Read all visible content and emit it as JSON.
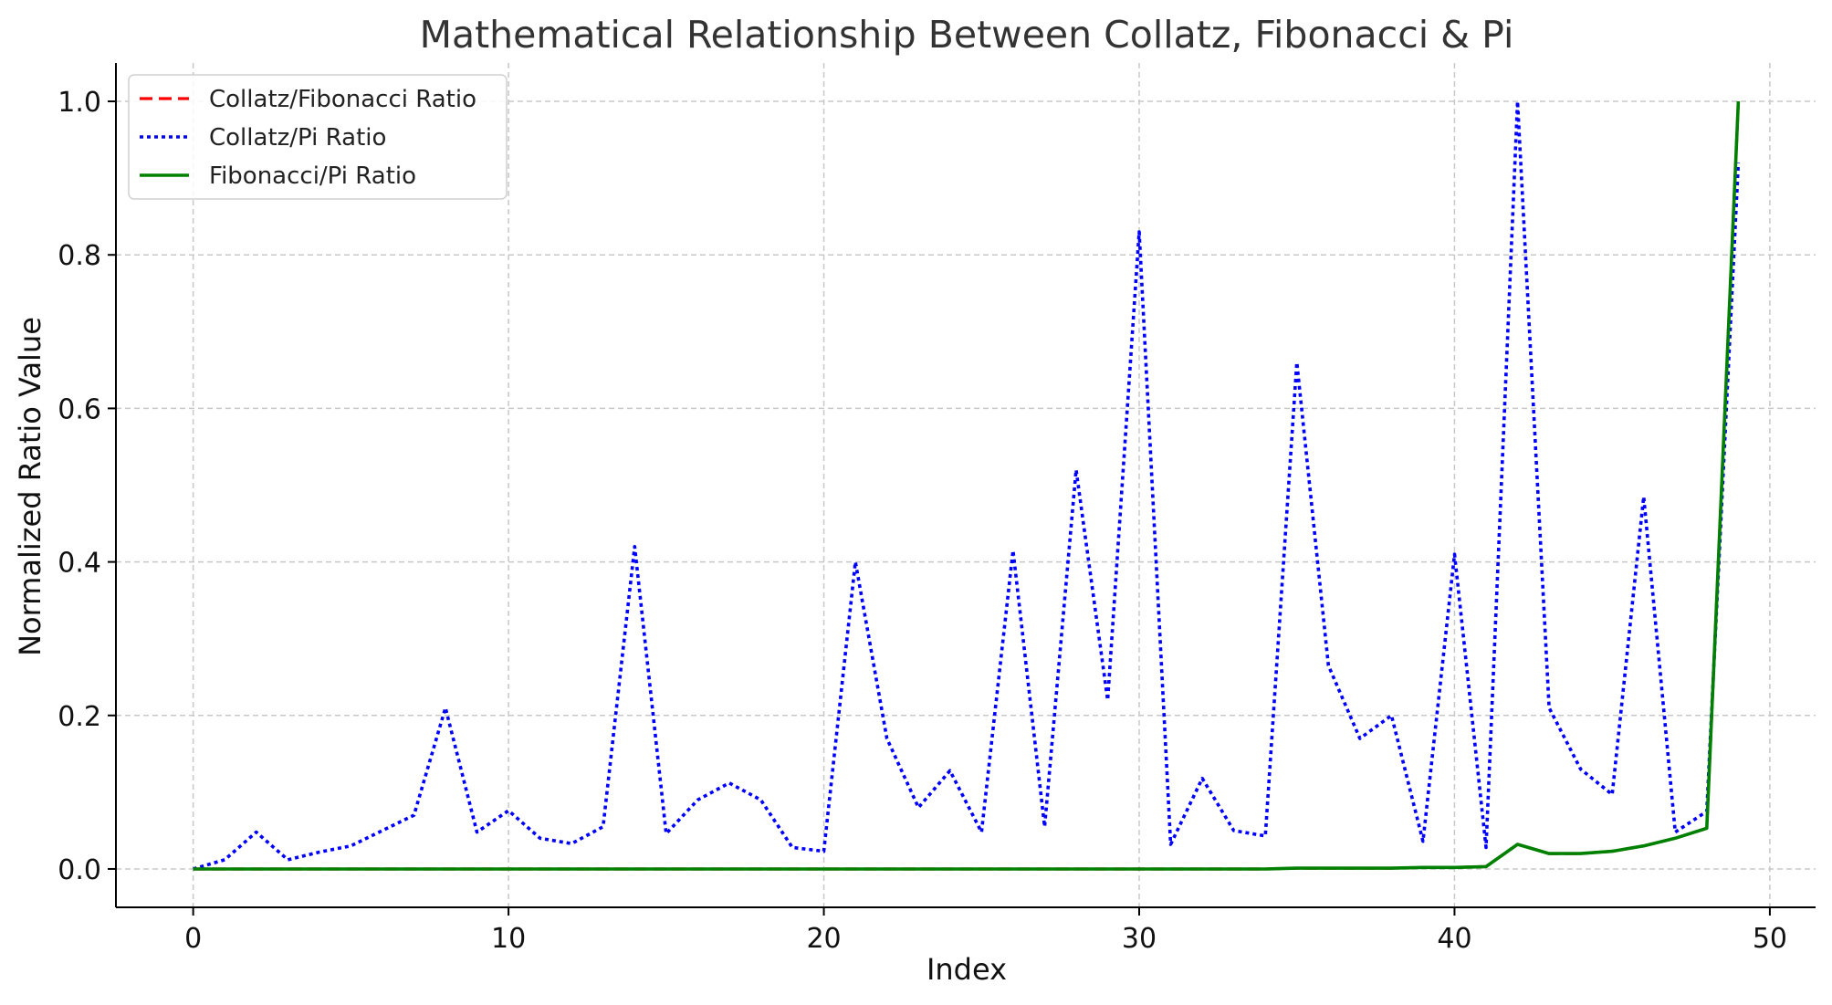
{
  "chart_data": {
    "type": "line",
    "title": "Mathematical Relationship Between Collatz, Fibonacci & Pi",
    "xlabel": "Index",
    "ylabel": "Normalized Ratio Value",
    "xlim": [
      -2.45,
      51.45
    ],
    "ylim": [
      -0.05,
      1.05
    ],
    "xticks": [
      0,
      10,
      20,
      30,
      40,
      50
    ],
    "yticks": [
      0.0,
      0.2,
      0.4,
      0.6,
      0.8,
      1.0
    ],
    "xtick_labels": [
      "0",
      "10",
      "20",
      "30",
      "40",
      "50"
    ],
    "ytick_labels": [
      "0.0",
      "0.2",
      "0.4",
      "0.6",
      "0.8",
      "1.0"
    ],
    "grid": true,
    "legend_position": "top-left",
    "x": [
      0,
      1,
      2,
      3,
      4,
      5,
      6,
      7,
      8,
      9,
      10,
      11,
      12,
      13,
      14,
      15,
      16,
      17,
      18,
      19,
      20,
      21,
      22,
      23,
      24,
      25,
      26,
      27,
      28,
      29,
      30,
      31,
      32,
      33,
      34,
      35,
      36,
      37,
      38,
      39,
      40,
      41,
      42,
      43,
      44,
      45,
      46,
      47,
      48,
      49
    ],
    "series": [
      {
        "name": "Collatz/Fibonacci Ratio",
        "color": "#ff0000",
        "style": "dashed",
        "values": [
          0,
          0,
          0,
          0,
          0,
          0,
          0,
          0,
          0,
          0,
          0,
          0,
          0,
          0,
          0,
          0,
          0,
          0,
          0,
          0,
          0,
          0,
          0,
          0,
          0,
          0,
          0,
          0,
          0,
          0,
          0,
          0,
          0,
          0,
          0,
          0.001,
          0.001,
          0.001,
          0.001,
          0.002,
          0.002,
          0.003,
          0.032,
          0.02,
          0.02,
          0.023,
          0.03,
          0.04,
          0.053,
          1.0
        ]
      },
      {
        "name": "Collatz/Pi Ratio",
        "color": "#0000ff",
        "style": "dotted",
        "values": [
          0.0,
          0.012,
          0.048,
          0.012,
          0.022,
          0.03,
          0.05,
          0.07,
          0.21,
          0.048,
          0.076,
          0.04,
          0.033,
          0.055,
          0.42,
          0.046,
          0.09,
          0.112,
          0.09,
          0.028,
          0.023,
          0.4,
          0.17,
          0.08,
          0.128,
          0.048,
          0.415,
          0.055,
          0.52,
          0.22,
          0.83,
          0.032,
          0.118,
          0.05,
          0.043,
          0.66,
          0.265,
          0.17,
          0.2,
          0.036,
          0.41,
          0.028,
          1.0,
          0.21,
          0.13,
          0.097,
          0.485,
          0.048,
          0.075,
          0.92
        ]
      },
      {
        "name": "Fibonacci/Pi Ratio",
        "color": "#008000",
        "style": "solid",
        "values": [
          0,
          0,
          0,
          0,
          0,
          0,
          0,
          0,
          0,
          0,
          0,
          0,
          0,
          0,
          0,
          0,
          0,
          0,
          0,
          0,
          0,
          0,
          0,
          0,
          0,
          0,
          0,
          0,
          0,
          0,
          0,
          0,
          0,
          0,
          0,
          0.001,
          0.001,
          0.001,
          0.001,
          0.002,
          0.002,
          0.003,
          0.032,
          0.02,
          0.02,
          0.023,
          0.03,
          0.04,
          0.053,
          1.0
        ]
      }
    ]
  }
}
